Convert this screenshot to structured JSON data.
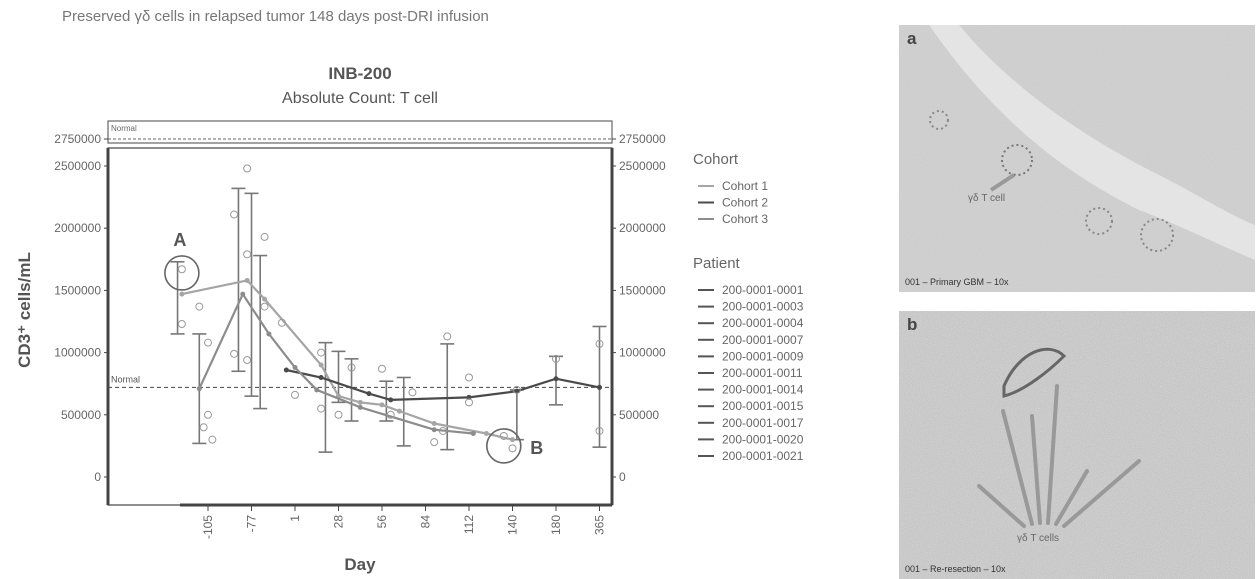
{
  "headline": "Preserved γδ cells in relapsed tumor 148 days post-DRI infusion",
  "chart_data": {
    "type": "line",
    "title": "INB-200",
    "subtitle": "Absolute Count: T cell",
    "xlabel": "Day",
    "ylabel": "CD3⁺ cells/mL",
    "categories": [
      "-105",
      "-77",
      "1",
      "28",
      "56",
      "84",
      "112",
      "140",
      "180",
      "365"
    ],
    "yticks": [
      "0",
      "500000",
      "1000000",
      "1500000",
      "2000000",
      "2500000",
      "2750000"
    ],
    "ylim": [
      0,
      2750000
    ],
    "normal_label": "Normal",
    "normal_value": 720000,
    "series": [
      {
        "name": "Cohort 1",
        "color": "#a5a5a5",
        "values": [
          [
            -0.6,
            1470000
          ],
          [
            0.9,
            1580000
          ],
          [
            1.3,
            1430000
          ],
          [
            2.6,
            900000
          ],
          [
            3.0,
            650000
          ],
          [
            3.5,
            600000
          ],
          [
            4.0,
            580000
          ],
          [
            4.4,
            530000
          ],
          [
            5.2,
            430000
          ],
          [
            6.4,
            350000
          ],
          [
            7.0,
            300000
          ]
        ]
      },
      {
        "name": "Cohort 2",
        "color": "#4a4a4a",
        "values": [
          [
            1.8,
            860000
          ],
          [
            2.6,
            800000
          ],
          [
            3.7,
            670000
          ],
          [
            4.2,
            620000
          ],
          [
            6.0,
            640000
          ],
          [
            7.1,
            690000
          ],
          [
            8.0,
            790000
          ],
          [
            9.0,
            720000
          ]
        ]
      },
      {
        "name": "Cohort 3",
        "color": "#8c8c8c",
        "values": [
          [
            -0.2,
            710000
          ],
          [
            0.8,
            1470000
          ],
          [
            1.4,
            1150000
          ],
          [
            2.0,
            880000
          ],
          [
            2.5,
            700000
          ],
          [
            3.5,
            560000
          ],
          [
            5.2,
            380000
          ],
          [
            6.1,
            350000
          ]
        ]
      }
    ],
    "error_bars": [
      {
        "x": -0.7,
        "low": 1150000,
        "high": 1730000
      },
      {
        "x": -0.2,
        "low": 270000,
        "high": 1150000
      },
      {
        "x": 0.7,
        "low": 850000,
        "high": 2320000
      },
      {
        "x": 1.0,
        "low": 650000,
        "high": 2280000
      },
      {
        "x": 1.2,
        "low": 550000,
        "high": 1780000
      },
      {
        "x": 2.7,
        "low": 200000,
        "high": 1080000
      },
      {
        "x": 3.0,
        "low": 600000,
        "high": 1010000
      },
      {
        "x": 3.3,
        "low": 450000,
        "high": 950000
      },
      {
        "x": 4.1,
        "low": 450000,
        "high": 770000
      },
      {
        "x": 4.5,
        "low": 250000,
        "high": 800000
      },
      {
        "x": 5.5,
        "low": 220000,
        "high": 1070000
      },
      {
        "x": 7.1,
        "low": 300000,
        "high": 700000
      },
      {
        "x": 8.0,
        "low": 580000,
        "high": 970000
      },
      {
        "x": 9.0,
        "low": 240000,
        "high": 1210000
      }
    ],
    "points": [
      [
        -0.6,
        1670000
      ],
      [
        -0.6,
        1230000
      ],
      [
        -0.2,
        1370000
      ],
      [
        0.0,
        1080000
      ],
      [
        0.1,
        300000
      ],
      [
        -0.1,
        400000
      ],
      [
        0.0,
        500000
      ],
      [
        0.6,
        2110000
      ],
      [
        0.9,
        2480000
      ],
      [
        0.9,
        1790000
      ],
      [
        1.3,
        1930000
      ],
      [
        1.3,
        1370000
      ],
      [
        0.6,
        990000
      ],
      [
        0.9,
        940000
      ],
      [
        1.7,
        1240000
      ],
      [
        2.0,
        660000
      ],
      [
        2.6,
        550000
      ],
      [
        2.6,
        1000000
      ],
      [
        3.3,
        880000
      ],
      [
        3.0,
        500000
      ],
      [
        4.0,
        870000
      ],
      [
        4.2,
        500000
      ],
      [
        4.7,
        680000
      ],
      [
        5.2,
        280000
      ],
      [
        5.5,
        1130000
      ],
      [
        5.4,
        370000
      ],
      [
        6.0,
        600000
      ],
      [
        6.0,
        800000
      ],
      [
        6.8,
        330000
      ],
      [
        7.0,
        230000
      ],
      [
        7.1,
        700000
      ],
      [
        8.0,
        950000
      ],
      [
        9.0,
        1070000
      ],
      [
        9.0,
        370000
      ]
    ],
    "annotations": [
      {
        "label": "A",
        "x": -0.6,
        "y": 1640000
      },
      {
        "label": "B",
        "x": 6.8,
        "y": 250000
      }
    ],
    "legend": {
      "cohort_title": "Cohort",
      "cohorts": [
        {
          "label": "Cohort 1",
          "color": "#a5a5a5"
        },
        {
          "label": "Cohort 2",
          "color": "#4a4a4a"
        },
        {
          "label": "Cohort 3",
          "color": "#8c8c8c"
        }
      ],
      "patient_title": "Patient",
      "patients": [
        "200-0001-0001",
        "200-0001-0003",
        "200-0001-0004",
        "200-0001-0007",
        "200-0001-0009",
        "200-0001-0011",
        "200-0001-0014",
        "200-0001-0015",
        "200-0001-0017",
        "200-0001-0020",
        "200-0001-0021"
      ]
    }
  },
  "panels": [
    {
      "letter": "a",
      "cell_label": "γδ T cell",
      "caption": "001 – Primary GBM – 10x"
    },
    {
      "letter": "b",
      "cell_label": "γδ T cells",
      "caption": "001 – Re-resection – 10x"
    }
  ]
}
